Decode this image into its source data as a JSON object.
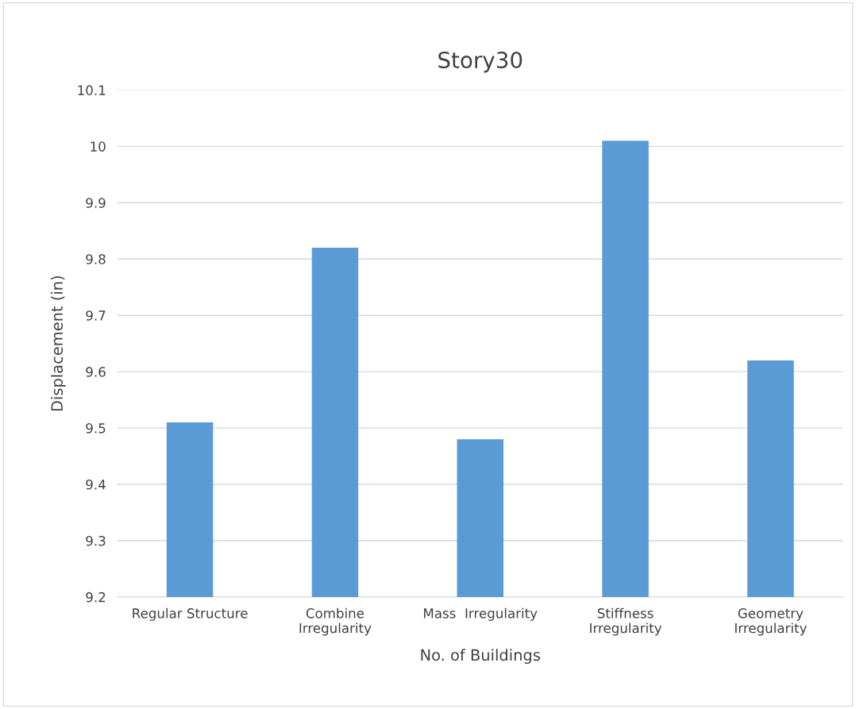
{
  "chart_data": {
    "type": "bar",
    "title": "Story30",
    "xlabel": "No. of Buildings",
    "ylabel": "Displacement (in)",
    "categories": [
      "Regular Structure",
      "Combine\nIrregularity",
      "Mass  Irregularity",
      "Stiffness\nIrregularity",
      "Geometry\nIrregularity"
    ],
    "values": [
      9.51,
      9.82,
      9.48,
      10.01,
      9.62
    ],
    "color": "#5b9bd5",
    "ylim": [
      9.2,
      10.1
    ],
    "yticks": [
      9.2,
      9.3,
      9.4,
      9.5,
      9.6,
      9.7,
      9.8,
      9.9,
      {
        "value": 10,
        "label": "10"
      },
      10.1
    ],
    "grid": "y"
  }
}
